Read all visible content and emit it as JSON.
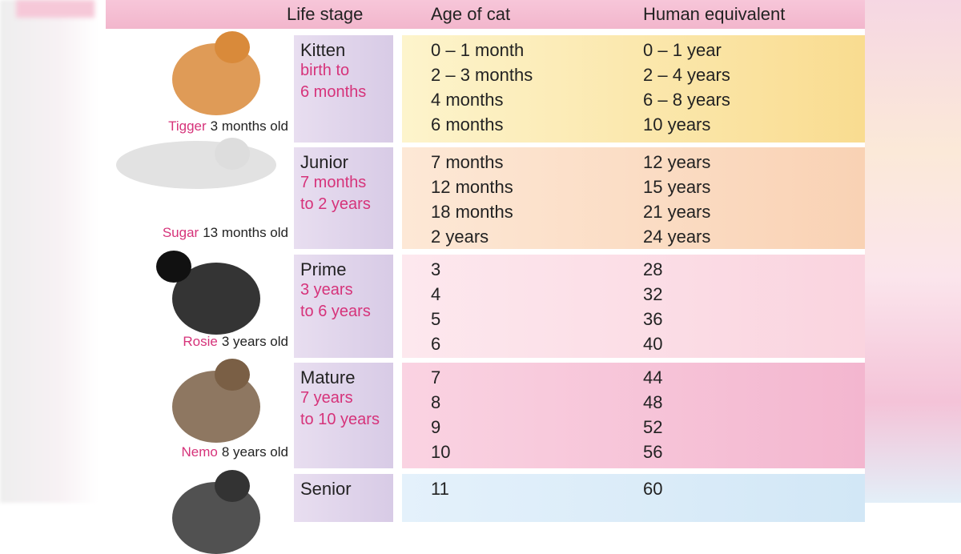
{
  "header": [
    "Life stage",
    "Age of cat",
    "Human equivalent"
  ],
  "rows": [
    {
      "stage": "Kitten",
      "range": [
        "birth to",
        "6 months"
      ],
      "cat_name": "Tigger",
      "cat_age": "3 months old",
      "ages": [
        "0 – 1 month",
        "2 – 3 months",
        "4 months",
        "6 months"
      ],
      "human": [
        "0 – 1 year",
        "2 – 4 years",
        "6 – 8 years",
        "10 years"
      ]
    },
    {
      "stage": "Junior",
      "range": [
        "7 months",
        "to 2 years"
      ],
      "cat_name": "Sugar",
      "cat_age": "13 months old",
      "ages": [
        "7 months",
        "12 months",
        "18 months",
        "2 years"
      ],
      "human": [
        "12 years",
        "15 years",
        "21 years",
        "24 years"
      ]
    },
    {
      "stage": "Prime",
      "range": [
        "3 years",
        "to 6 years"
      ],
      "cat_name": "Rosie",
      "cat_age": "3 years old",
      "ages": [
        "3",
        "4",
        "5",
        "6"
      ],
      "human": [
        "28",
        "32",
        "36",
        "40"
      ]
    },
    {
      "stage": "Mature",
      "range": [
        "7 years",
        "to 10 years"
      ],
      "cat_name": "Nemo",
      "cat_age": "8 years old",
      "ages": [
        "7",
        "8",
        "9",
        "10"
      ],
      "human": [
        "44",
        "48",
        "52",
        "56"
      ]
    },
    {
      "stage": "Senior",
      "range": [],
      "cat_name": null,
      "cat_age": null,
      "ages": [
        "11"
      ],
      "human": [
        "60"
      ]
    }
  ]
}
